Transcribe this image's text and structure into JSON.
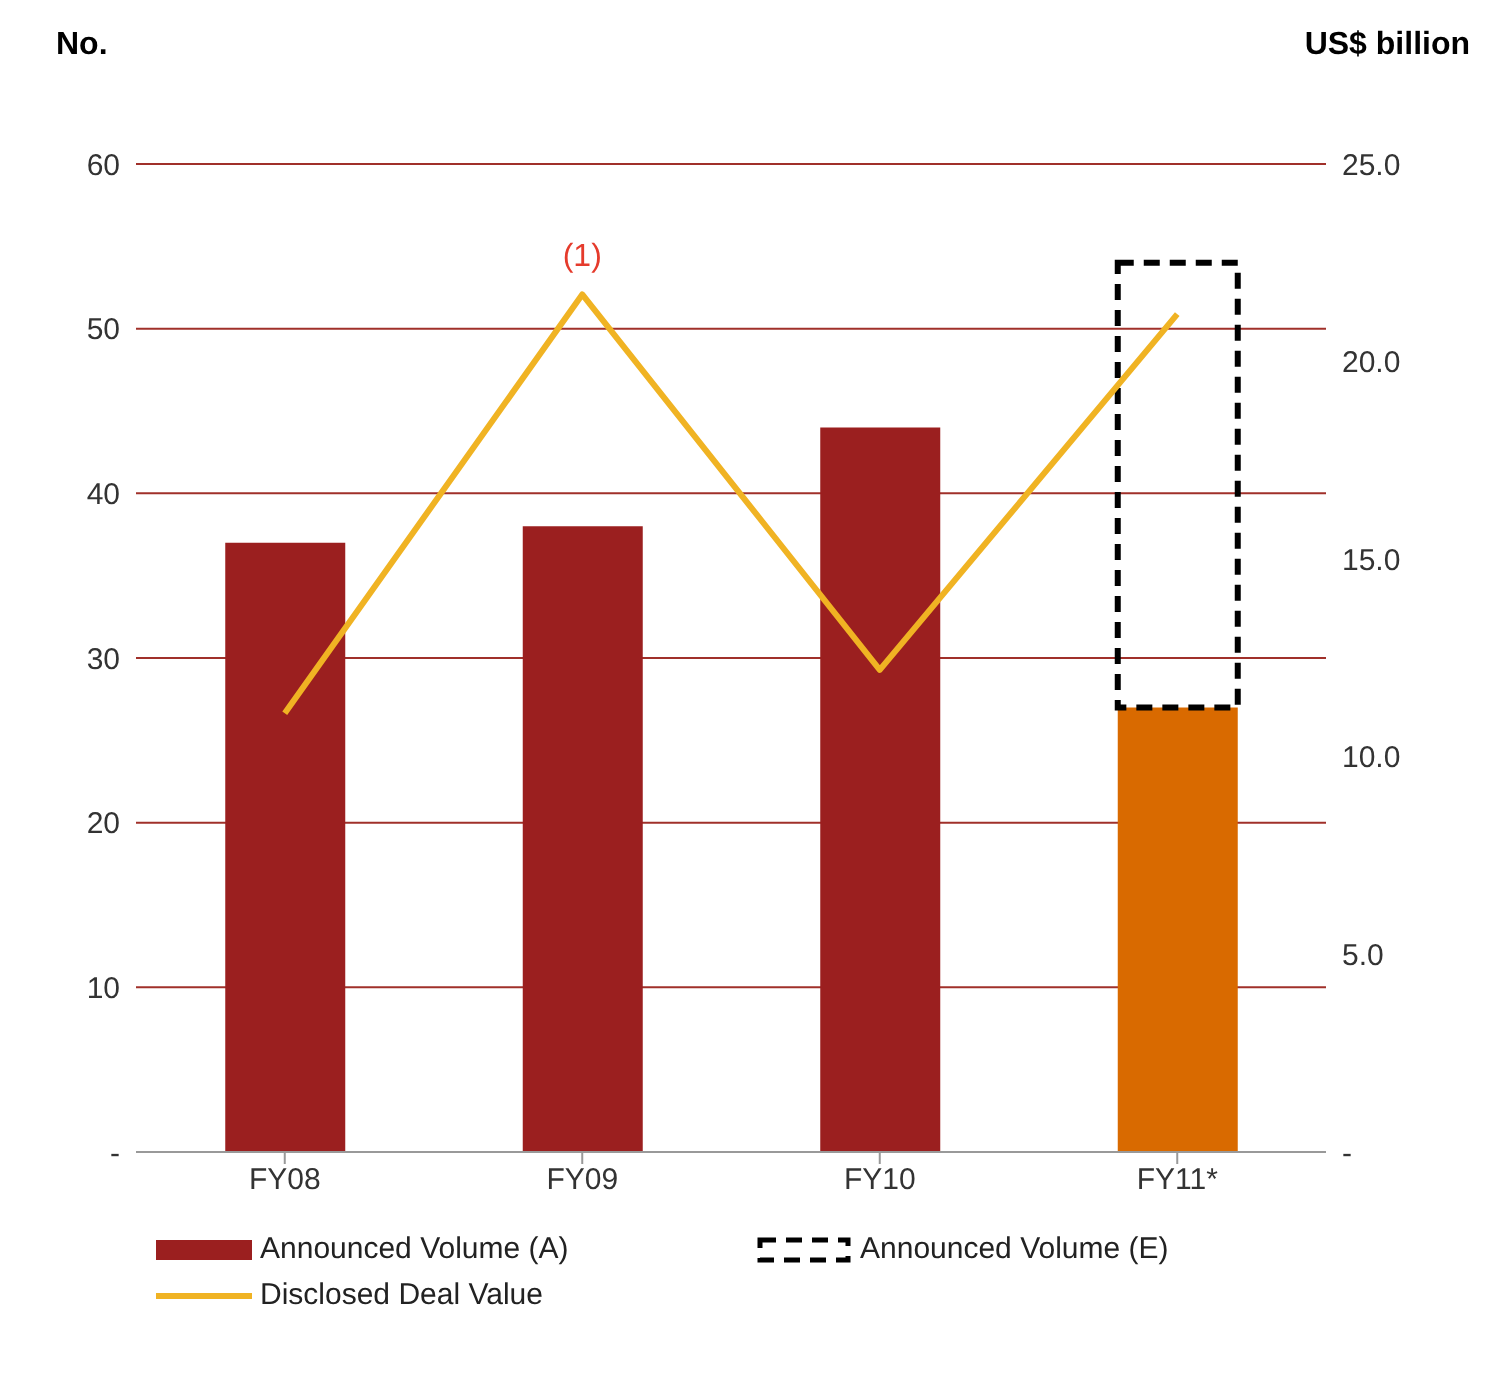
{
  "chart_data": {
    "type": "bar",
    "stacked": true,
    "ylabel": "No.",
    "y2label": "US$ billion",
    "categories": [
      "FY08",
      "FY09",
      "FY10",
      "FY11*"
    ],
    "series": [
      {
        "name": "Announced Volume (A)",
        "color": "#9b1f1f",
        "colors": [
          "#9b1f1f",
          "#9b1f1f",
          "#9b1f1f",
          "#d96a00"
        ],
        "values": [
          37,
          38,
          44,
          27
        ]
      },
      {
        "name": "Announced Volume (E)",
        "color": "#000000",
        "line_style": "dashed",
        "values": [
          null,
          null,
          null,
          27
        ]
      },
      {
        "name": "Disclosed Deal Value",
        "type": "line",
        "axis": "y2",
        "color": "#f0b323",
        "marker": "none",
        "values": [
          11.1,
          21.7,
          12.2,
          21.2
        ]
      }
    ],
    "ylim": [
      0,
      60
    ],
    "yticks": [
      {
        "value": 0,
        "label": "-"
      },
      10,
      20,
      30,
      40,
      50,
      60
    ],
    "y2lim": [
      0,
      25
    ],
    "y2ticks": [
      {
        "value": 0,
        "label": "-"
      },
      {
        "value": 5,
        "label": "5.0"
      },
      {
        "value": 10,
        "label": "10.0"
      },
      {
        "value": 15,
        "label": "15.0"
      },
      {
        "value": 20,
        "label": "20.0"
      },
      {
        "value": 25,
        "label": "25.0"
      }
    ],
    "grid": "y",
    "legend": "bottom",
    "annotations": [
      "(1)"
    ]
  }
}
